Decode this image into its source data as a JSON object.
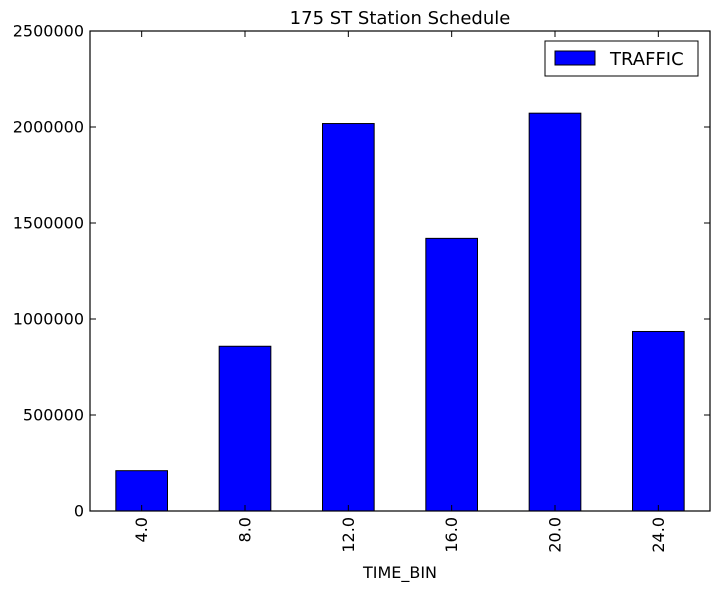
{
  "chart_data": {
    "type": "bar",
    "title": "175 ST Station Schedule",
    "xlabel": "TIME_BIN",
    "ylabel": "",
    "categories": [
      "4.0",
      "8.0",
      "12.0",
      "16.0",
      "20.0",
      "24.0"
    ],
    "series": [
      {
        "name": "TRAFFIC",
        "values": [
          210000,
          858000,
          2018000,
          1420000,
          2072000,
          935000
        ],
        "color": "#0000ff"
      }
    ],
    "ylim": [
      0,
      2500000
    ],
    "yticks": [
      0,
      500000,
      1000000,
      1500000,
      2000000,
      2500000
    ],
    "ytick_labels": [
      "0",
      "500000",
      "1000000",
      "1500000",
      "2000000",
      "2500000"
    ],
    "grid": false,
    "legend_position": "top-right",
    "x_tick_rotation": "vertical"
  }
}
